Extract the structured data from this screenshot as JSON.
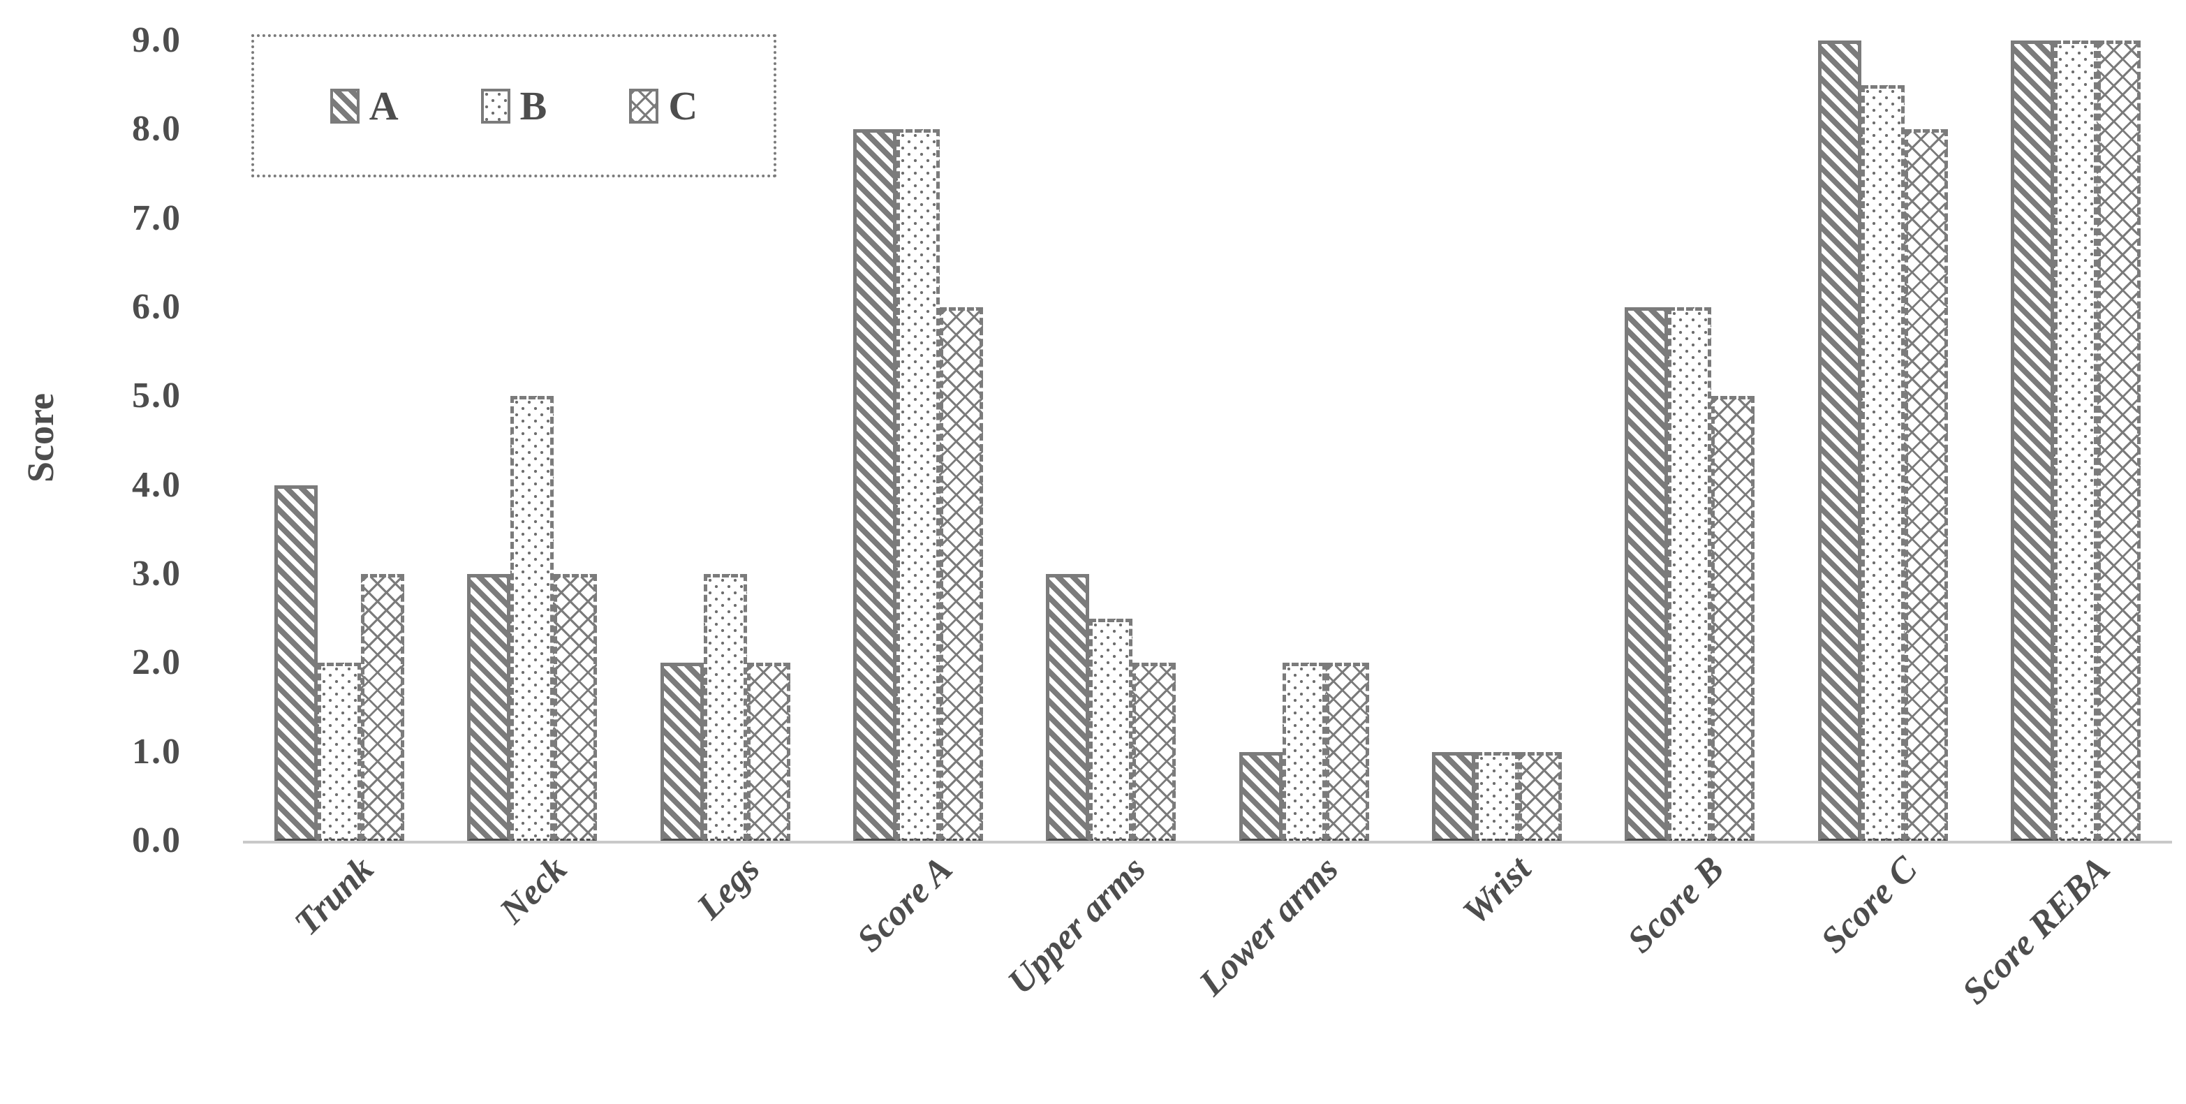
{
  "chart_data": {
    "type": "bar",
    "title": "",
    "xlabel": "",
    "ylabel": "Score",
    "ylim": [
      0,
      9
    ],
    "ytick_labels": [
      "0.0",
      "1.0",
      "2.0",
      "3.0",
      "4.0",
      "5.0",
      "6.0",
      "7.0",
      "8.0",
      "9.0"
    ],
    "categories": [
      "Trunk",
      "Neck",
      "Legs",
      "Score A",
      "Upper arms",
      "Lower arms",
      "Wrist",
      "Score B",
      "Score C",
      "Score REBA"
    ],
    "series": [
      {
        "name": "A",
        "pattern": "diagonal-hatch",
        "values": [
          4,
          3,
          2,
          8,
          3,
          1,
          1,
          6,
          9,
          9
        ]
      },
      {
        "name": "B",
        "pattern": "dots",
        "values": [
          2,
          5,
          3,
          8,
          2.5,
          2,
          1,
          6,
          8.5,
          9
        ]
      },
      {
        "name": "C",
        "pattern": "crosshatch",
        "values": [
          3,
          3,
          2,
          6,
          2,
          2,
          1,
          5,
          8,
          9
        ]
      }
    ],
    "legend": {
      "position": "top-left",
      "entries": [
        "A",
        "B",
        "C"
      ]
    },
    "grid": false,
    "colors": {
      "pattern": "#7b7b7b",
      "text": "#4d4d4d",
      "axis_line": "#c9c9c9",
      "background": "#ffffff"
    }
  }
}
